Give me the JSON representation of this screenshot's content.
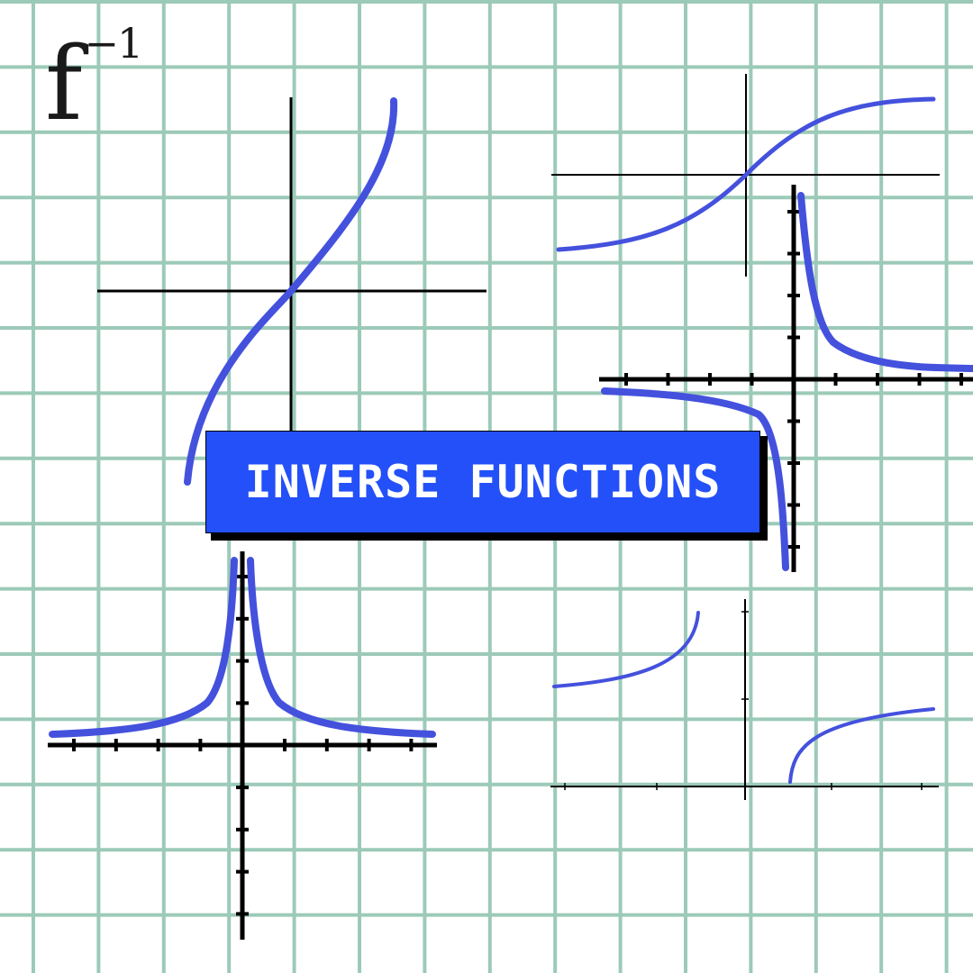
{
  "formula": {
    "base": "f",
    "superscript": "−1"
  },
  "banner": {
    "title": "INVERSE FUNCTIONS"
  },
  "colors": {
    "background": "#ffffff",
    "grid": "#9ccab8",
    "curve": "#4451dd",
    "axis": "#000000",
    "banner": "#2350f8",
    "banner_text": "#ffffff"
  },
  "graphs": [
    {
      "name": "sine-like-curve",
      "ticks": false
    },
    {
      "name": "sigmoid-curve",
      "ticks": false
    },
    {
      "name": "reciprocal-curve",
      "ticks": true
    },
    {
      "name": "inverse-square-curve",
      "ticks": true
    },
    {
      "name": "split-curve",
      "ticks": true
    }
  ]
}
